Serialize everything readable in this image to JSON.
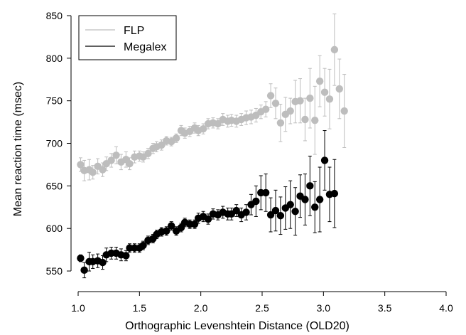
{
  "chart_data": {
    "type": "scatter",
    "title": "",
    "xlabel": "Orthographic Levenshtein Distance (OLD20)",
    "ylabel": "Mean reaction time (msec)",
    "xlim": [
      1.0,
      4.0
    ],
    "ylim": [
      540,
      850
    ],
    "xticks": [
      "1.0",
      "1.5",
      "2.0",
      "2.5",
      "3.0",
      "3.5",
      "4.0"
    ],
    "yticks": [
      "550",
      "600",
      "650",
      "700",
      "750",
      "800",
      "850"
    ],
    "grid": false,
    "legend": "top-left",
    "series": [
      {
        "name": "FLP",
        "color": "#bdbdbd",
        "points": [
          [
            1.02,
            675,
            8
          ],
          [
            1.05,
            668,
            12
          ],
          [
            1.09,
            669,
            12
          ],
          [
            1.12,
            666,
            8
          ],
          [
            1.16,
            673,
            9
          ],
          [
            1.2,
            669,
            8
          ],
          [
            1.23,
            676,
            8
          ],
          [
            1.27,
            680,
            8
          ],
          [
            1.31,
            686,
            10
          ],
          [
            1.35,
            678,
            9
          ],
          [
            1.39,
            681,
            9
          ],
          [
            1.42,
            676,
            7
          ],
          [
            1.46,
            684,
            7
          ],
          [
            1.5,
            685,
            6
          ],
          [
            1.53,
            684,
            6
          ],
          [
            1.57,
            688,
            6
          ],
          [
            1.61,
            694,
            6
          ],
          [
            1.64,
            696,
            6
          ],
          [
            1.68,
            698,
            6
          ],
          [
            1.72,
            703,
            5
          ],
          [
            1.76,
            702,
            5
          ],
          [
            1.8,
            706,
            5
          ],
          [
            1.84,
            715,
            6
          ],
          [
            1.87,
            712,
            6
          ],
          [
            1.91,
            714,
            6
          ],
          [
            1.95,
            718,
            6
          ],
          [
            1.98,
            715,
            6
          ],
          [
            2.02,
            717,
            6
          ],
          [
            2.06,
            723,
            6
          ],
          [
            2.1,
            724,
            6
          ],
          [
            2.14,
            723,
            6
          ],
          [
            2.18,
            728,
            7
          ],
          [
            2.22,
            726,
            7
          ],
          [
            2.25,
            727,
            7
          ],
          [
            2.29,
            726,
            7
          ],
          [
            2.33,
            728,
            7
          ],
          [
            2.37,
            730,
            8
          ],
          [
            2.41,
            731,
            8
          ],
          [
            2.45,
            733,
            8
          ],
          [
            2.49,
            737,
            8
          ],
          [
            2.53,
            740,
            9
          ],
          [
            2.57,
            756,
            14
          ],
          [
            2.61,
            747,
            18
          ],
          [
            2.65,
            724,
            22
          ],
          [
            2.69,
            734,
            20
          ],
          [
            2.73,
            738,
            15
          ],
          [
            2.77,
            749,
            25
          ],
          [
            2.81,
            750,
            26
          ],
          [
            2.85,
            728,
            25
          ],
          [
            2.89,
            753,
            35
          ],
          [
            2.93,
            727,
            40
          ],
          [
            2.97,
            773,
            30
          ],
          [
            3.01,
            760,
            28
          ],
          [
            3.05,
            752,
            35
          ],
          [
            3.09,
            810,
            42
          ],
          [
            3.13,
            764,
            35
          ],
          [
            3.17,
            738,
            43
          ]
        ]
      },
      {
        "name": "Megalex",
        "color": "#000000",
        "points": [
          [
            1.02,
            565,
            4
          ],
          [
            1.05,
            551,
            9
          ],
          [
            1.09,
            561,
            11
          ],
          [
            1.12,
            561,
            8
          ],
          [
            1.16,
            562,
            8
          ],
          [
            1.2,
            560,
            8
          ],
          [
            1.23,
            569,
            8
          ],
          [
            1.27,
            571,
            7
          ],
          [
            1.31,
            571,
            7
          ],
          [
            1.35,
            569,
            7
          ],
          [
            1.39,
            568,
            6
          ],
          [
            1.42,
            577,
            5
          ],
          [
            1.46,
            577,
            5
          ],
          [
            1.5,
            577,
            5
          ],
          [
            1.53,
            580,
            5
          ],
          [
            1.57,
            586,
            5
          ],
          [
            1.61,
            588,
            5
          ],
          [
            1.64,
            593,
            5
          ],
          [
            1.68,
            596,
            5
          ],
          [
            1.72,
            597,
            5
          ],
          [
            1.76,
            603,
            5
          ],
          [
            1.8,
            597,
            5
          ],
          [
            1.84,
            601,
            5
          ],
          [
            1.87,
            607,
            5
          ],
          [
            1.91,
            605,
            5
          ],
          [
            1.95,
            605,
            5
          ],
          [
            1.98,
            612,
            6
          ],
          [
            2.02,
            614,
            6
          ],
          [
            2.06,
            611,
            6
          ],
          [
            2.1,
            617,
            6
          ],
          [
            2.14,
            616,
            6
          ],
          [
            2.18,
            619,
            7
          ],
          [
            2.22,
            617,
            7
          ],
          [
            2.25,
            617,
            7
          ],
          [
            2.29,
            621,
            7
          ],
          [
            2.33,
            616,
            8
          ],
          [
            2.37,
            619,
            9
          ],
          [
            2.41,
            628,
            12
          ],
          [
            2.45,
            632,
            18
          ],
          [
            2.49,
            642,
            20
          ],
          [
            2.53,
            642,
            22
          ],
          [
            2.57,
            616,
            20
          ],
          [
            2.61,
            621,
            24
          ],
          [
            2.65,
            615,
            22
          ],
          [
            2.69,
            624,
            25
          ],
          [
            2.73,
            628,
            28
          ],
          [
            2.77,
            620,
            28
          ],
          [
            2.81,
            638,
            25
          ],
          [
            2.85,
            634,
            30
          ],
          [
            2.89,
            650,
            35
          ],
          [
            2.93,
            625,
            30
          ],
          [
            2.97,
            634,
            38
          ],
          [
            3.01,
            680,
            35
          ],
          [
            3.05,
            640,
            32
          ],
          [
            3.09,
            641,
            40
          ]
        ]
      }
    ]
  }
}
